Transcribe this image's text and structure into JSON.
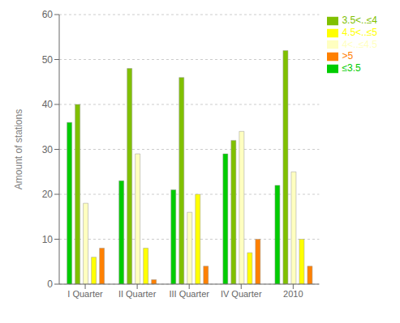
{
  "chart_data": {
    "type": "bar",
    "categories": [
      "I Quarter",
      "II Quarter",
      "III Quarter",
      "IV Quarter",
      "2010"
    ],
    "series": [
      {
        "name": "≤3.5",
        "color": "#00cc00",
        "values": [
          36,
          23,
          21,
          29,
          22
        ]
      },
      {
        "name": "3.5<..≤4",
        "color": "#80c000",
        "values": [
          40,
          48,
          46,
          32,
          52
        ]
      },
      {
        "name": "4<..≤4.5",
        "color": "#ffffc0",
        "values": [
          18,
          29,
          16,
          34,
          25
        ]
      },
      {
        "name": "4.5<..≤5",
        "color": "#ffff00",
        "values": [
          6,
          8,
          20,
          7,
          10
        ]
      },
      {
        "name": ">5",
        "color": "#ff8000",
        "values": [
          8,
          1,
          4,
          10,
          4
        ]
      }
    ],
    "ylabel": "Amount of stations",
    "ylim": [
      0,
      60
    ],
    "yticks": [
      0,
      10,
      20,
      30,
      40,
      50,
      60
    ],
    "grid": true,
    "legend": "upper right"
  }
}
